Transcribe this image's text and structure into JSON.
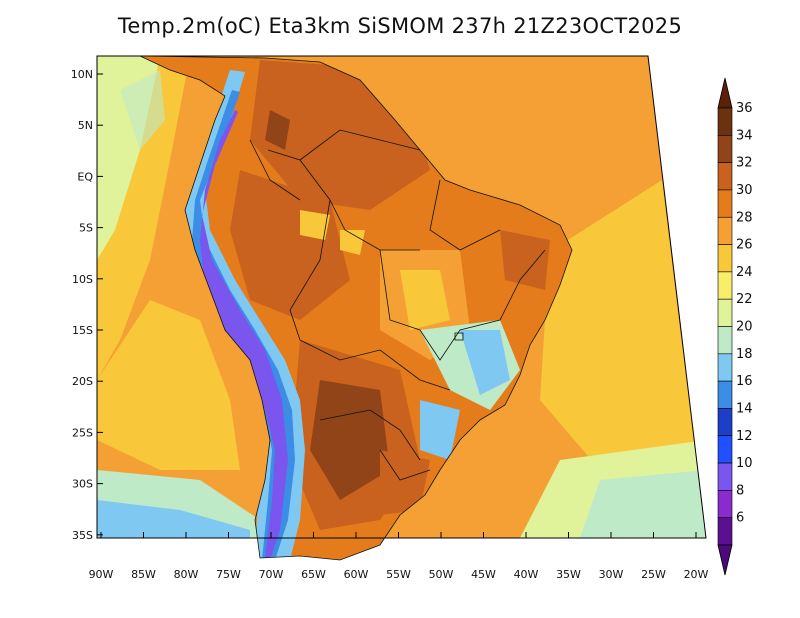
{
  "title": "Temp.2m(oC) Eta3km SiSMOM 237h 21Z23OCT2025",
  "lat_labels": [
    "10N",
    "5N",
    "EQ",
    "5S",
    "10S",
    "15S",
    "20S",
    "25S",
    "30S",
    "35S"
  ],
  "lon_labels": [
    "90W",
    "85W",
    "80W",
    "75W",
    "70W",
    "65W",
    "60W",
    "55W",
    "50W",
    "45W",
    "40W",
    "35W",
    "30W",
    "25W",
    "20W"
  ],
  "colorbar": {
    "labels": [
      "36",
      "34",
      "32",
      "30",
      "28",
      "26",
      "24",
      "22",
      "20",
      "18",
      "16",
      "14",
      "12",
      "10",
      "8",
      "6"
    ],
    "bins": [
      {
        "color": "#6b3210"
      },
      {
        "color": "#914417"
      },
      {
        "color": "#c9621e"
      },
      {
        "color": "#e47c1c"
      },
      {
        "color": "#f5a035"
      },
      {
        "color": "#f8c83a"
      },
      {
        "color": "#f8ee6a"
      },
      {
        "color": "#e0f29a"
      },
      {
        "color": "#bfeac8"
      },
      {
        "color": "#7fc8f2"
      },
      {
        "color": "#3b8de6"
      },
      {
        "color": "#1b3fc8"
      },
      {
        "color": "#2050ff"
      },
      {
        "color": "#7a55ee"
      },
      {
        "color": "#8a2bd0"
      },
      {
        "color": "#5a1090"
      }
    ],
    "top_arrow_color": "#5a2008",
    "bottom_arrow_color": "#4a0a7a"
  }
}
